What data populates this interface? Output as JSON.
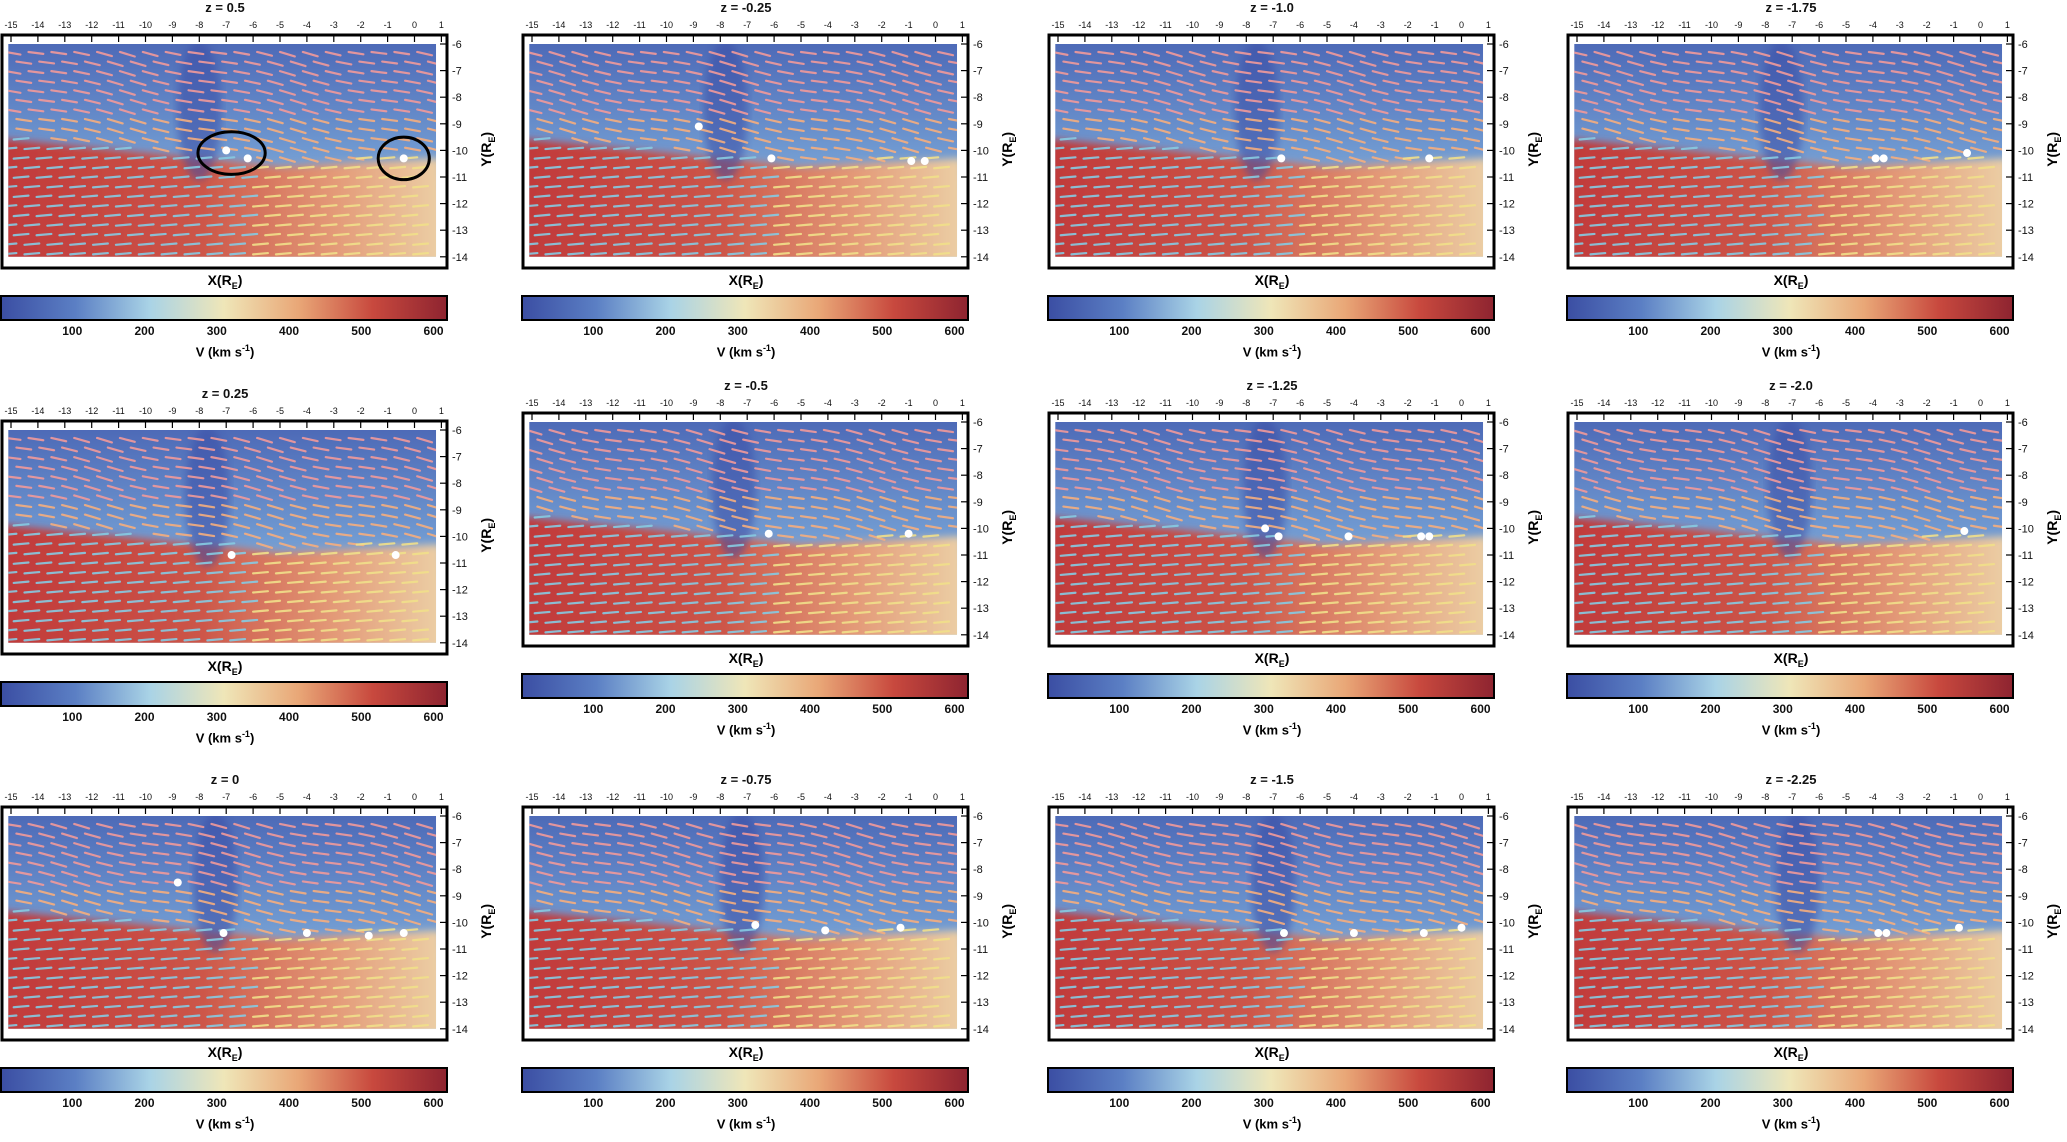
{
  "chart_data": {
    "type": "heatmap",
    "description_note": "",
    "x_label": "X(R",
    "x_label_sub": "E",
    "x_label_end": ")",
    "y_label": "Y(R",
    "y_label_sub": "E",
    "y_label_end": ")",
    "x_ticks": [
      -15,
      -14,
      -13,
      -12,
      -11,
      -10,
      -9,
      -8,
      -7,
      -6,
      -5,
      -4,
      -3,
      -2,
      -1,
      0,
      1
    ],
    "y_ticks": [
      -6,
      -7,
      -8,
      -9,
      -10,
      -11,
      -12,
      -13,
      -14
    ],
    "xlim": [
      -15.1,
      0.8
    ],
    "ylim": [
      -14,
      -6
    ],
    "colorbar": {
      "label": "V  (km s",
      "label_sup": "-1",
      "label_end": ")",
      "ticks": [
        100,
        200,
        300,
        400,
        500,
        600
      ],
      "range": [
        0,
        620
      ],
      "colors": [
        "#3b4ea3",
        "#5b7fc4",
        "#a9d3e6",
        "#efe6b8",
        "#e9a777",
        "#c8493e",
        "#8e2430"
      ]
    },
    "panels": [
      {
        "title": "z = 0.5",
        "points": [
          [
            -7,
            -10
          ],
          [
            -6.2,
            -10.3
          ],
          [
            -0.4,
            -10.3
          ]
        ],
        "circles": [
          [
            -6.8,
            -10.1,
            1.25,
            0.8
          ],
          [
            -0.4,
            -10.3,
            0.95,
            0.8
          ]
        ]
      },
      {
        "title": "z = 0.25",
        "points": [
          [
            -6.8,
            -10.7
          ],
          [
            -0.7,
            -10.7
          ]
        ]
      },
      {
        "title": "z = 0",
        "points": [
          [
            -8.8,
            -8.5
          ],
          [
            -7.1,
            -10.4
          ],
          [
            -4,
            -10.4
          ],
          [
            -1.7,
            -10.5
          ],
          [
            -0.4,
            -10.4
          ]
        ]
      },
      {
        "title": "z = -0.25",
        "points": [
          [
            -8.8,
            -9.1
          ],
          [
            -6.1,
            -10.3
          ],
          [
            -0.9,
            -10.4
          ],
          [
            -0.4,
            -10.4
          ]
        ]
      },
      {
        "title": "z = -0.5",
        "points": [
          [
            -6.2,
            -10.2
          ],
          [
            -1,
            -10.2
          ]
        ]
      },
      {
        "title": "z = -0.75",
        "points": [
          [
            -6.7,
            -10.1
          ],
          [
            -4.1,
            -10.3
          ],
          [
            -1.3,
            -10.2
          ]
        ]
      },
      {
        "title": "z = -1.0",
        "points": [
          [
            -6.7,
            -10.3
          ],
          [
            -1.2,
            -10.3
          ]
        ]
      },
      {
        "title": "z = -1.25",
        "points": [
          [
            -7.3,
            -10
          ],
          [
            -6.8,
            -10.3
          ],
          [
            -4.2,
            -10.3
          ],
          [
            -1.5,
            -10.3
          ],
          [
            -1.2,
            -10.3
          ]
        ]
      },
      {
        "title": "z = -1.5",
        "points": [
          [
            -6.6,
            -10.4
          ],
          [
            -4,
            -10.4
          ],
          [
            -1.4,
            -10.4
          ],
          [
            0,
            -10.2
          ]
        ]
      },
      {
        "title": "z = -1.75",
        "points": [
          [
            -3.9,
            -10.3
          ],
          [
            -3.6,
            -10.3
          ],
          [
            -0.5,
            -10.1
          ]
        ]
      },
      {
        "title": "z = -2.0",
        "points": [
          [
            -0.6,
            -10.1
          ]
        ]
      },
      {
        "title": "z = -2.25",
        "points": [
          [
            -3.8,
            -10.4
          ],
          [
            -3.5,
            -10.4
          ],
          [
            -0.8,
            -10.2
          ]
        ]
      }
    ]
  }
}
